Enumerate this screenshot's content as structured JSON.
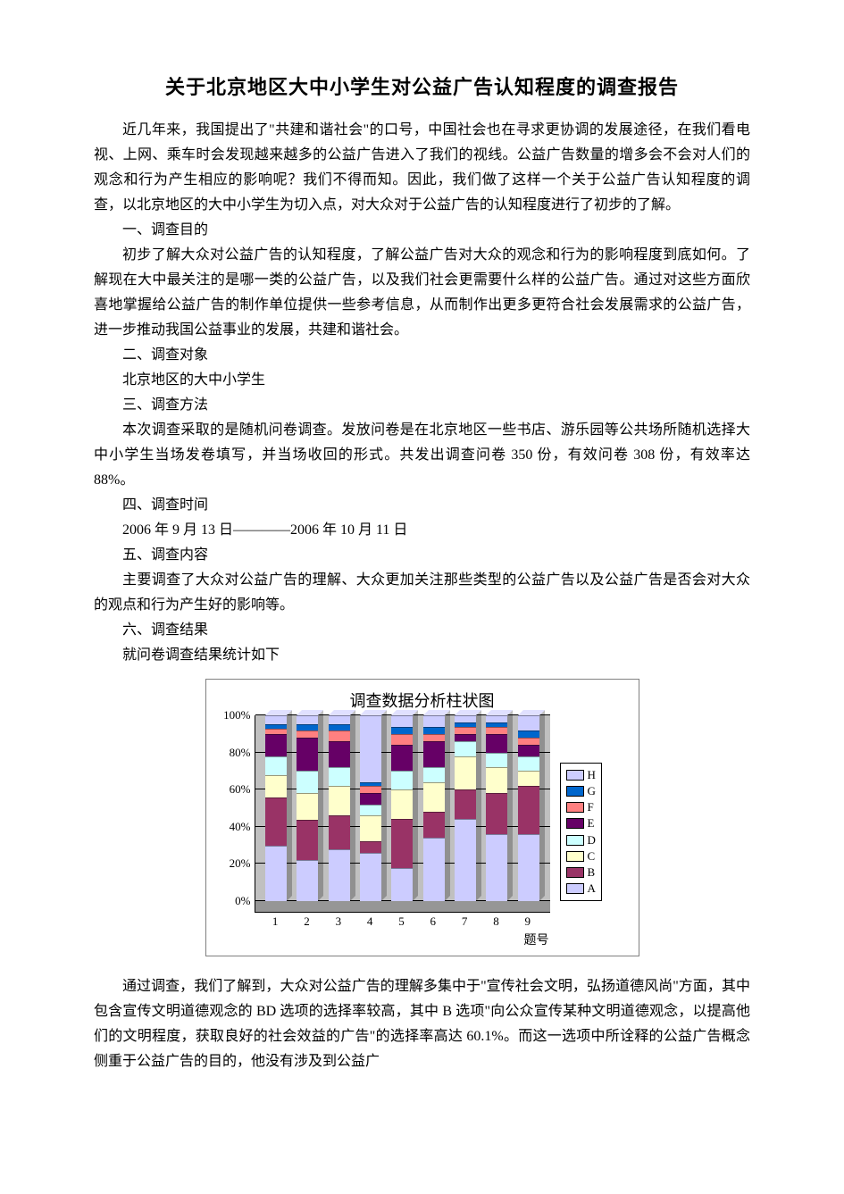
{
  "title": "关于北京地区大中小学生对公益广告认知程度的调查报告",
  "p_intro": "近几年来，我国提出了\"共建和谐社会\"的口号，中国社会也在寻求更协调的发展途径，在我们看电视、上网、乘车时会发现越来越多的公益广告进入了我们的视线。公益广告数量的增多会不会对人们的观念和行为产生相应的影响呢？我们不得而知。因此，我们做了这样一个关于公益广告认知程度的调查，以北京地区的大中小学生为切入点，对大众对于公益广告的认知程度进行了初步的了解。",
  "h1": "一、调查目的",
  "p1": "初步了解大众对公益广告的认知程度，了解公益广告对大众的观念和行为的影响程度到底如何。了解现在大中最关注的是哪一类的公益广告，以及我们社会更需要什么样的公益广告。通过对这些方面欣喜地掌握给公益广告的制作单位提供一些参考信息，从而制作出更多更符合社会发展需求的公益广告，进一步推动我国公益事业的发展，共建和谐社会。",
  "h2": "二、调查对象",
  "p2": "北京地区的大中小学生",
  "h3": "三、调查方法",
  "p3": "本次调查采取的是随机问卷调查。发放问卷是在北京地区一些书店、游乐园等公共场所随机选择大中小学生当场发卷填写，并当场收回的形式。共发出调查问卷 350 份，有效问卷 308 份，有效率达 88%。",
  "h4": "四、调查时间",
  "p4": "2006 年 9 月 13 日————2006 年 10 月 11 日",
  "h5": "五、调查内容",
  "p5": "主要调查了大众对公益广告的理解、大众更加关注那些类型的公益广告以及公益广告是否会对大众的观点和行为产生好的影响等。",
  "h6": "六、调查结果",
  "p6": "就问卷调查结果统计如下",
  "p_after": "通过调查，我们了解到，大众对公益广告的理解多集中于\"宣传社会文明，弘扬道德风尚\"方面，其中包含宣传文明道德观念的 BD 选项的选择率较高，其中 B 选项\"向公众宣传某种文明道德观念，以提高他们的文明程度，获取良好的社会效益的广告\"的选择率高达 60.1%。而这一选项中所诠释的公益广告概念侧重于公益广告的目的，他没有涉及到公益广",
  "chart": {
    "title": "调查数据分析柱状图",
    "ylabel_ticks": [
      "0%",
      "20%",
      "40%",
      "60%",
      "80%",
      "100%"
    ],
    "ylim": [
      0,
      100
    ],
    "xlabels": [
      "1",
      "2",
      "3",
      "4",
      "5",
      "6",
      "7",
      "8",
      "9"
    ],
    "xaxis_title": "题号",
    "background_color": "#c0c0c0",
    "series": [
      {
        "key": "A",
        "label": "A",
        "color": "#ccccff"
      },
      {
        "key": "B",
        "label": "B",
        "color": "#993366"
      },
      {
        "key": "C",
        "label": "C",
        "color": "#ffffcc"
      },
      {
        "key": "D",
        "label": "D",
        "color": "#ccffff"
      },
      {
        "key": "E",
        "label": "E",
        "color": "#660066"
      },
      {
        "key": "F",
        "label": "F",
        "color": "#ff8080"
      },
      {
        "key": "G",
        "label": "G",
        "color": "#0066cc"
      },
      {
        "key": "H",
        "label": "H",
        "color": "#ccccff"
      }
    ],
    "legend_order": [
      "H",
      "G",
      "F",
      "E",
      "D",
      "C",
      "B",
      "A"
    ],
    "data": [
      {
        "A": 30,
        "B": 26,
        "C": 12,
        "D": 10,
        "E": 12,
        "F": 3,
        "G": 2,
        "H": 5
      },
      {
        "A": 22,
        "B": 22,
        "C": 14,
        "D": 12,
        "E": 18,
        "F": 4,
        "G": 3,
        "H": 5
      },
      {
        "A": 28,
        "B": 18,
        "C": 16,
        "D": 10,
        "E": 14,
        "F": 6,
        "G": 3,
        "H": 5
      },
      {
        "A": 26,
        "B": 6,
        "C": 14,
        "D": 6,
        "E": 6,
        "F": 4,
        "G": 2,
        "H": 36
      },
      {
        "A": 18,
        "B": 26,
        "C": 16,
        "D": 10,
        "E": 14,
        "F": 6,
        "G": 4,
        "H": 6
      },
      {
        "A": 34,
        "B": 14,
        "C": 16,
        "D": 8,
        "E": 14,
        "F": 4,
        "G": 4,
        "H": 6
      },
      {
        "A": 44,
        "B": 16,
        "C": 18,
        "D": 8,
        "E": 4,
        "F": 4,
        "G": 2,
        "H": 4
      },
      {
        "A": 36,
        "B": 22,
        "C": 14,
        "D": 8,
        "E": 10,
        "F": 4,
        "G": 2,
        "H": 4
      },
      {
        "A": 36,
        "B": 26,
        "C": 8,
        "D": 8,
        "E": 6,
        "F": 4,
        "G": 4,
        "H": 8
      }
    ]
  }
}
